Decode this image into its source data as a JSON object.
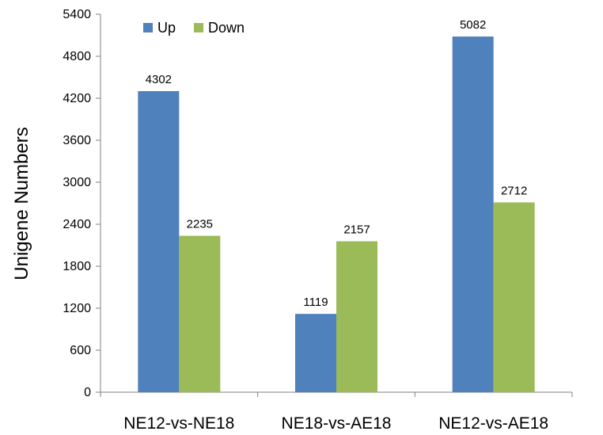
{
  "chart_data": {
    "type": "bar",
    "title": "",
    "xlabel": "",
    "ylabel": "Unigene Numbers",
    "categories": [
      "NE12-vs-NE18",
      "NE18-vs-AE18",
      "NE12-vs-AE18"
    ],
    "series": [
      {
        "name": "Up",
        "values": [
          4302,
          1119,
          5082
        ],
        "color": "#4F81BD"
      },
      {
        "name": "Down",
        "values": [
          2235,
          2157,
          2712
        ],
        "color": "#9BBB59"
      }
    ],
    "ylim": [
      0,
      5400
    ],
    "yticks": [
      0,
      600,
      1200,
      1800,
      2400,
      3000,
      3600,
      4200,
      4800,
      5400
    ],
    "grid": false,
    "legend_position": "top-left",
    "data_labels": true
  }
}
